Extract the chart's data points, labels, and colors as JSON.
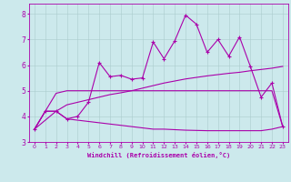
{
  "xlabel": "Windchill (Refroidissement éolien,°C)",
  "xlim": [
    -0.5,
    23.5
  ],
  "ylim": [
    3.0,
    8.4
  ],
  "xticks": [
    0,
    1,
    2,
    3,
    4,
    5,
    6,
    7,
    8,
    9,
    10,
    11,
    12,
    13,
    14,
    15,
    16,
    17,
    18,
    19,
    20,
    21,
    22,
    23
  ],
  "yticks": [
    3,
    4,
    5,
    6,
    7,
    8
  ],
  "bg_color": "#cce9ec",
  "line_color": "#aa00aa",
  "grid_color": "#aacccc",
  "line1_x": [
    0,
    1,
    2,
    3,
    4,
    5,
    6,
    7,
    8,
    9,
    10,
    11,
    12,
    13,
    14,
    15,
    16,
    17,
    18,
    19,
    20,
    21,
    22,
    23
  ],
  "line1_y": [
    3.5,
    4.2,
    4.2,
    3.9,
    4.0,
    4.55,
    6.1,
    5.55,
    5.6,
    5.45,
    5.5,
    6.9,
    6.25,
    6.95,
    7.95,
    7.6,
    6.5,
    7.0,
    6.35,
    7.1,
    5.95,
    4.75,
    5.3,
    3.6
  ],
  "line2_x": [
    0,
    1,
    2,
    3,
    4,
    5,
    6,
    7,
    8,
    9,
    10,
    11,
    12,
    13,
    14,
    15,
    16,
    17,
    18,
    19,
    20,
    21,
    22,
    23
  ],
  "line2_y": [
    3.5,
    4.2,
    4.9,
    5.0,
    5.0,
    5.0,
    5.0,
    5.0,
    5.0,
    5.0,
    5.0,
    5.0,
    5.0,
    5.0,
    5.0,
    5.0,
    5.0,
    5.0,
    5.0,
    5.0,
    5.0,
    5.0,
    5.0,
    3.6
  ],
  "line3_x": [
    0,
    1,
    2,
    3,
    4,
    5,
    6,
    7,
    8,
    9,
    10,
    11,
    12,
    13,
    14,
    15,
    16,
    17,
    18,
    19,
    20,
    21,
    22,
    23
  ],
  "line3_y": [
    3.5,
    4.2,
    4.2,
    3.9,
    3.85,
    3.8,
    3.75,
    3.7,
    3.65,
    3.6,
    3.55,
    3.5,
    3.5,
    3.48,
    3.46,
    3.45,
    3.44,
    3.44,
    3.44,
    3.44,
    3.44,
    3.44,
    3.5,
    3.6
  ],
  "line4_x": [
    0,
    1,
    2,
    3,
    4,
    5,
    6,
    7,
    8,
    9,
    10,
    11,
    12,
    13,
    14,
    15,
    16,
    17,
    18,
    19,
    20,
    21,
    22,
    23
  ],
  "line4_y": [
    3.5,
    3.85,
    4.2,
    4.45,
    4.55,
    4.65,
    4.75,
    4.85,
    4.92,
    5.0,
    5.1,
    5.2,
    5.3,
    5.38,
    5.46,
    5.52,
    5.58,
    5.63,
    5.68,
    5.72,
    5.78,
    5.83,
    5.88,
    5.95
  ]
}
